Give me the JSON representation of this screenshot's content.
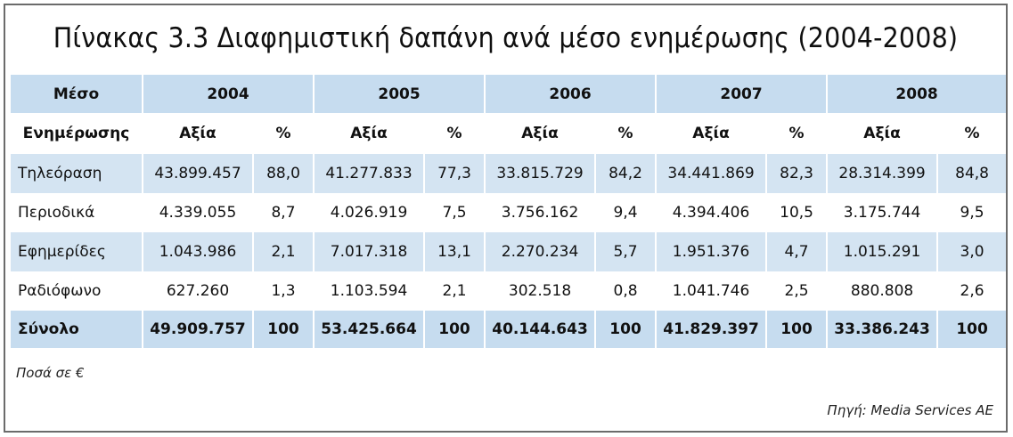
{
  "title": "Πίνακας 3.3 Διαφημιστική δαπάνη ανά μέσο ενημέρωσης (2004-2008)",
  "header": {
    "medium_line1": "Μέσο",
    "medium_line2": "Ενημέρωσης",
    "years": [
      "2004",
      "2005",
      "2006",
      "2007",
      "2008"
    ],
    "value_label": "Αξία",
    "percent_label": "%"
  },
  "rows": [
    {
      "label": "Τηλεόραση",
      "cells": [
        "43.899.457",
        "88,0",
        "41.277.833",
        "77,3",
        "33.815.729",
        "84,2",
        "34.441.869",
        "82,3",
        "28.314.399",
        "84,8"
      ]
    },
    {
      "label": "Περιοδικά",
      "cells": [
        "4.339.055",
        "8,7",
        "4.026.919",
        "7,5",
        "3.756.162",
        "9,4",
        "4.394.406",
        "10,5",
        "3.175.744",
        "9,5"
      ]
    },
    {
      "label": "Εφημερίδες",
      "cells": [
        "1.043.986",
        "2,1",
        "7.017.318",
        "13,1",
        "2.270.234",
        "5,7",
        "1.951.376",
        "4,7",
        "1.015.291",
        "3,0"
      ]
    },
    {
      "label": "Ραδιόφωνο",
      "cells": [
        "627.260",
        "1,3",
        "1.103.594",
        "2,1",
        "302.518",
        "0,8",
        "1.041.746",
        "2,5",
        "880.808",
        "2,6"
      ]
    }
  ],
  "total": {
    "label": "Σύνολο",
    "cells": [
      "49.909.757",
      "100",
      "53.425.664",
      "100",
      "40.144.643",
      "100",
      "41.829.397",
      "100",
      "33.386.243",
      "100"
    ]
  },
  "note": "Ποσά σε €",
  "source": "Πηγή: Media Services AE"
}
